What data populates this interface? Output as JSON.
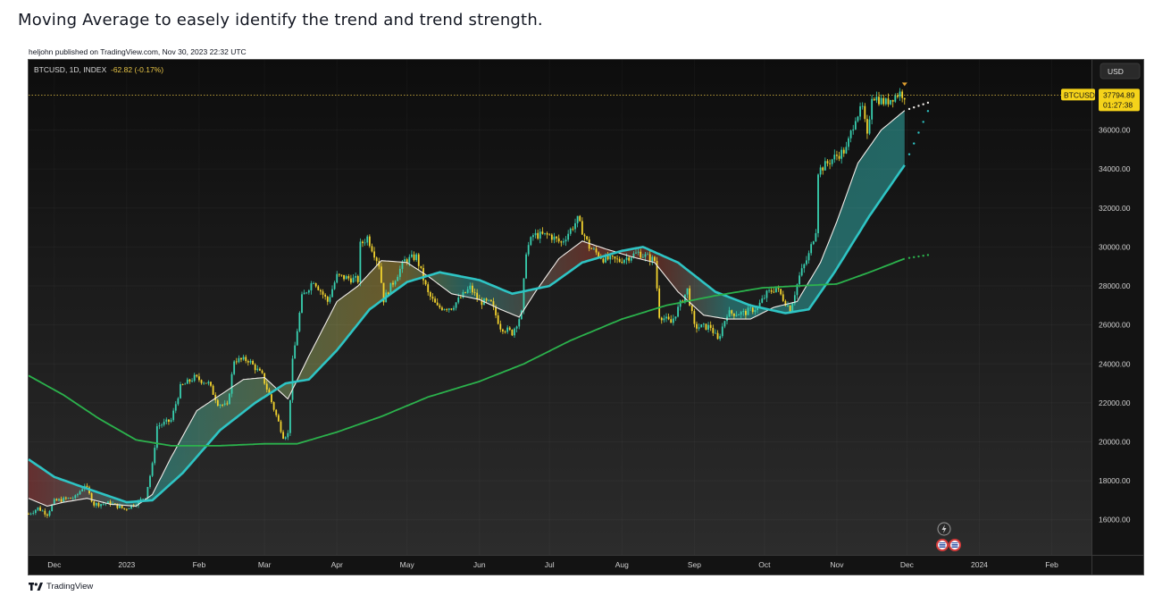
{
  "idea": {
    "title": "Moving Average to easely identify the trend and trend strength.",
    "published": "heljohn published on TradingView.com, Nov 30, 2023 22:32 UTC"
  },
  "footer": {
    "brand": "TradingView"
  },
  "chart_data": {
    "type": "candlestick",
    "symbol": "BTCUSD, 1D, INDEX",
    "change": "-62.82 (-0.17%)",
    "currency_button": "USD",
    "last_price": "37794.89",
    "last_price_value": 37794.89,
    "price_tag_symbol": "BTCUSD",
    "countdown": "01:27:38",
    "ylim": [
      14200,
      39600
    ],
    "yticks": [
      16000,
      18000,
      20000,
      22000,
      24000,
      26000,
      28000,
      30000,
      32000,
      34000,
      36000
    ],
    "ytick_labels": [
      "16000.00",
      "18000.00",
      "20000.00",
      "22000.00",
      "24000.00",
      "26000.00",
      "28000.00",
      "30000.00",
      "32000.00",
      "34000.00",
      "36000.00"
    ],
    "x_start": "2022-11-20",
    "x_end": "2024-02-18",
    "xticks": [
      {
        "date": "2022-12-01",
        "label": "Dec"
      },
      {
        "date": "2023-01-01",
        "label": "2023"
      },
      {
        "date": "2023-02-01",
        "label": "Feb"
      },
      {
        "date": "2023-03-01",
        "label": "Mar"
      },
      {
        "date": "2023-04-01",
        "label": "Apr"
      },
      {
        "date": "2023-05-01",
        "label": "May"
      },
      {
        "date": "2023-06-01",
        "label": "Jun"
      },
      {
        "date": "2023-07-01",
        "label": "Jul"
      },
      {
        "date": "2023-08-01",
        "label": "Aug"
      },
      {
        "date": "2023-09-01",
        "label": "Sep"
      },
      {
        "date": "2023-10-01",
        "label": "Oct"
      },
      {
        "date": "2023-11-01",
        "label": "Nov"
      },
      {
        "date": "2023-12-01",
        "label": "Dec"
      },
      {
        "date": "2024-01-01",
        "label": "2024"
      },
      {
        "date": "2024-02-01",
        "label": "Feb"
      }
    ],
    "price_path": [
      [
        "2022-11-20",
        16300
      ],
      [
        "2022-11-24",
        16600
      ],
      [
        "2022-11-28",
        16300
      ],
      [
        "2022-12-01",
        16950
      ],
      [
        "2022-12-05",
        17050
      ],
      [
        "2022-12-10",
        17150
      ],
      [
        "2022-12-14",
        17800
      ],
      [
        "2022-12-18",
        16800
      ],
      [
        "2022-12-25",
        16850
      ],
      [
        "2022-12-31",
        16550
      ],
      [
        "2023-01-05",
        16850
      ],
      [
        "2023-01-09",
        17200
      ],
      [
        "2023-01-12",
        18800
      ],
      [
        "2023-01-14",
        20800
      ],
      [
        "2023-01-20",
        21100
      ],
      [
        "2023-01-24",
        22800
      ],
      [
        "2023-01-30",
        23300
      ],
      [
        "2023-02-05",
        23000
      ],
      [
        "2023-02-09",
        22000
      ],
      [
        "2023-02-13",
        21800
      ],
      [
        "2023-02-16",
        24200
      ],
      [
        "2023-02-22",
        24200
      ],
      [
        "2023-02-28",
        23400
      ],
      [
        "2023-03-03",
        22400
      ],
      [
        "2023-03-09",
        20300
      ],
      [
        "2023-03-11",
        20400
      ],
      [
        "2023-03-13",
        24100
      ],
      [
        "2023-03-17",
        27400
      ],
      [
        "2023-03-22",
        28300
      ],
      [
        "2023-03-28",
        27200
      ],
      [
        "2023-04-01",
        28500
      ],
      [
        "2023-04-10",
        28300
      ],
      [
        "2023-04-11",
        30100
      ],
      [
        "2023-04-14",
        30500
      ],
      [
        "2023-04-19",
        29100
      ],
      [
        "2023-04-21",
        27300
      ],
      [
        "2023-04-26",
        28400
      ],
      [
        "2023-04-30",
        29300
      ],
      [
        "2023-05-05",
        29500
      ],
      [
        "2023-05-10",
        27600
      ],
      [
        "2023-05-14",
        26900
      ],
      [
        "2023-05-20",
        26900
      ],
      [
        "2023-05-28",
        27900
      ],
      [
        "2023-06-01",
        27200
      ],
      [
        "2023-06-06",
        27100
      ],
      [
        "2023-06-10",
        25900
      ],
      [
        "2023-06-15",
        25600
      ],
      [
        "2023-06-19",
        26600
      ],
      [
        "2023-06-21",
        29800
      ],
      [
        "2023-06-24",
        30600
      ],
      [
        "2023-07-01",
        30600
      ],
      [
        "2023-07-06",
        30200
      ],
      [
        "2023-07-13",
        31400
      ],
      [
        "2023-07-18",
        30000
      ],
      [
        "2023-07-24",
        29400
      ],
      [
        "2023-07-31",
        29300
      ],
      [
        "2023-08-08",
        29700
      ],
      [
        "2023-08-15",
        29300
      ],
      [
        "2023-08-17",
        26500
      ],
      [
        "2023-08-22",
        26100
      ],
      [
        "2023-08-29",
        27800
      ],
      [
        "2023-09-01",
        25900
      ],
      [
        "2023-09-08",
        25900
      ],
      [
        "2023-09-11",
        25200
      ],
      [
        "2023-09-15",
        26600
      ],
      [
        "2023-09-22",
        26600
      ],
      [
        "2023-09-28",
        26900
      ],
      [
        "2023-10-02",
        27600
      ],
      [
        "2023-10-06",
        27900
      ],
      [
        "2023-10-12",
        26800
      ],
      [
        "2023-10-16",
        28500
      ],
      [
        "2023-10-20",
        29600
      ],
      [
        "2023-10-23",
        30900
      ],
      [
        "2023-10-24",
        33900
      ],
      [
        "2023-10-31",
        34600
      ],
      [
        "2023-11-05",
        35000
      ],
      [
        "2023-11-09",
        36700
      ],
      [
        "2023-11-12",
        37100
      ],
      [
        "2023-11-14",
        35600
      ],
      [
        "2023-11-16",
        37800
      ],
      [
        "2023-11-20",
        37500
      ],
      [
        "2023-11-22",
        37400
      ],
      [
        "2023-11-25",
        37700
      ],
      [
        "2023-11-28",
        37900
      ],
      [
        "2023-11-30",
        37790
      ]
    ],
    "series": [
      {
        "color": "#f0ece8",
        "points": [
          [
            "2022-11-20",
            17100
          ],
          [
            "2022-11-28",
            16700
          ],
          [
            "2022-12-05",
            16900
          ],
          [
            "2022-12-15",
            17100
          ],
          [
            "2022-12-25",
            16800
          ],
          [
            "2023-01-05",
            16700
          ],
          [
            "2023-01-12",
            17300
          ],
          [
            "2023-01-20",
            19200
          ],
          [
            "2023-01-31",
            21600
          ],
          [
            "2023-02-10",
            22400
          ],
          [
            "2023-02-20",
            23200
          ],
          [
            "2023-03-01",
            23300
          ],
          [
            "2023-03-11",
            22200
          ],
          [
            "2023-03-20",
            24400
          ],
          [
            "2023-04-01",
            27200
          ],
          [
            "2023-04-10",
            28000
          ],
          [
            "2023-04-20",
            29300
          ],
          [
            "2023-05-01",
            29200
          ],
          [
            "2023-05-10",
            28500
          ],
          [
            "2023-05-20",
            27600
          ],
          [
            "2023-06-01",
            27300
          ],
          [
            "2023-06-10",
            26800
          ],
          [
            "2023-06-18",
            26400
          ],
          [
            "2023-06-25",
            27700
          ],
          [
            "2023-07-05",
            29400
          ],
          [
            "2023-07-15",
            30300
          ],
          [
            "2023-07-25",
            29900
          ],
          [
            "2023-08-05",
            29500
          ],
          [
            "2023-08-15",
            29200
          ],
          [
            "2023-08-25",
            27700
          ],
          [
            "2023-09-05",
            26500
          ],
          [
            "2023-09-15",
            26300
          ],
          [
            "2023-09-25",
            26300
          ],
          [
            "2023-10-05",
            26900
          ],
          [
            "2023-10-15",
            27200
          ],
          [
            "2023-10-25",
            29200
          ],
          [
            "2023-11-01",
            31300
          ],
          [
            "2023-11-10",
            34300
          ],
          [
            "2023-11-20",
            36000
          ],
          [
            "2023-11-30",
            37000
          ]
        ]
      },
      {
        "color": "#2ec4c4",
        "points": [
          [
            "2022-11-20",
            19100
          ],
          [
            "2022-12-01",
            18200
          ],
          [
            "2022-12-15",
            17600
          ],
          [
            "2023-01-01",
            16900
          ],
          [
            "2023-01-12",
            17000
          ],
          [
            "2023-01-25",
            18400
          ],
          [
            "2023-02-10",
            20600
          ],
          [
            "2023-02-25",
            22000
          ],
          [
            "2023-03-10",
            23000
          ],
          [
            "2023-03-20",
            23200
          ],
          [
            "2023-04-01",
            24700
          ],
          [
            "2023-04-15",
            26800
          ],
          [
            "2023-05-01",
            28200
          ],
          [
            "2023-05-15",
            28700
          ],
          [
            "2023-06-01",
            28300
          ],
          [
            "2023-06-15",
            27600
          ],
          [
            "2023-07-01",
            28000
          ],
          [
            "2023-07-15",
            29200
          ],
          [
            "2023-08-01",
            29800
          ],
          [
            "2023-08-10",
            30000
          ],
          [
            "2023-08-25",
            29200
          ],
          [
            "2023-09-10",
            27700
          ],
          [
            "2023-09-25",
            27000
          ],
          [
            "2023-10-10",
            26600
          ],
          [
            "2023-10-20",
            26800
          ],
          [
            "2023-10-31",
            28700
          ],
          [
            "2023-11-15",
            31600
          ],
          [
            "2023-11-30",
            34200
          ]
        ]
      },
      {
        "color": "#2bb24c",
        "points": [
          [
            "2022-11-20",
            23400
          ],
          [
            "2022-12-05",
            22400
          ],
          [
            "2022-12-20",
            21200
          ],
          [
            "2023-01-05",
            20100
          ],
          [
            "2023-01-20",
            19800
          ],
          [
            "2023-02-10",
            19800
          ],
          [
            "2023-03-01",
            19900
          ],
          [
            "2023-03-15",
            19900
          ],
          [
            "2023-04-01",
            20500
          ],
          [
            "2023-04-20",
            21300
          ],
          [
            "2023-05-10",
            22300
          ],
          [
            "2023-06-01",
            23100
          ],
          [
            "2023-06-20",
            24000
          ],
          [
            "2023-07-10",
            25200
          ],
          [
            "2023-08-01",
            26300
          ],
          [
            "2023-08-20",
            27000
          ],
          [
            "2023-09-10",
            27500
          ],
          [
            "2023-09-30",
            27900
          ],
          [
            "2023-10-15",
            28000
          ],
          [
            "2023-11-01",
            28100
          ],
          [
            "2023-11-15",
            28700
          ],
          [
            "2023-11-30",
            29400
          ]
        ]
      }
    ]
  }
}
